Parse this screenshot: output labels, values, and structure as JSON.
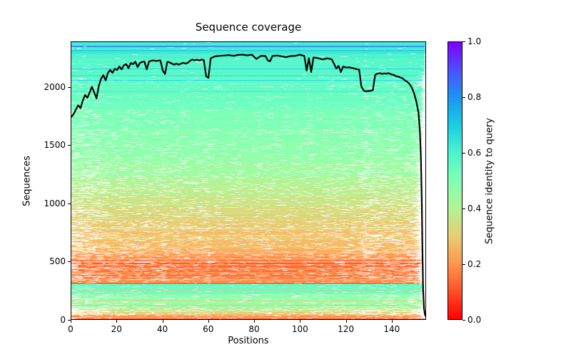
{
  "chart_data": {
    "type": "heatmap",
    "title": "Sequence coverage",
    "xlabel": "Positions",
    "ylabel": "Sequences",
    "x_range": [
      0,
      155
    ],
    "y_range": [
      0,
      2390
    ],
    "x_ticks": [
      0,
      20,
      40,
      60,
      80,
      100,
      120,
      140
    ],
    "y_ticks": [
      0,
      500,
      1000,
      1500,
      2000
    ],
    "grid": false,
    "background": "#ffffff",
    "colorbar": {
      "label": "Sequence identity to query",
      "range": [
        0.0,
        1.0
      ],
      "ticks": [
        "0.0",
        "0.2",
        "0.4",
        "0.6",
        "0.8",
        "1.0"
      ],
      "colormap": "rainbow_r",
      "stops": [
        {
          "v": 0.0,
          "c": "#ff0000"
        },
        {
          "v": 0.05,
          "c": "#ff2814"
        },
        {
          "v": 0.1,
          "c": "#ff4f28"
        },
        {
          "v": 0.15,
          "c": "#ff743b"
        },
        {
          "v": 0.2,
          "c": "#ff964f"
        },
        {
          "v": 0.3,
          "c": "#e6ce74"
        },
        {
          "v": 0.4,
          "c": "#b3f396"
        },
        {
          "v": 0.5,
          "c": "#80ffb4"
        },
        {
          "v": 0.6,
          "c": "#4df3ce"
        },
        {
          "v": 0.7,
          "c": "#1acee3"
        },
        {
          "v": 0.8,
          "c": "#1a96f3"
        },
        {
          "v": 0.9,
          "c": "#4d4ffc"
        },
        {
          "v": 1.0,
          "c": "#8000ff"
        }
      ]
    },
    "coverage_line": {
      "name": "coverage-per-position",
      "color": "#000000",
      "width": 2.2,
      "points": [
        [
          0,
          1745
        ],
        [
          1,
          1770
        ],
        [
          2,
          1810
        ],
        [
          3,
          1845
        ],
        [
          4,
          1820
        ],
        [
          5,
          1885
        ],
        [
          6,
          1935
        ],
        [
          7,
          1910
        ],
        [
          8,
          1955
        ],
        [
          9,
          2005
        ],
        [
          10,
          1955
        ],
        [
          11,
          1905
        ],
        [
          12,
          2010
        ],
        [
          13,
          2075
        ],
        [
          14,
          2105
        ],
        [
          15,
          2060
        ],
        [
          16,
          2125
        ],
        [
          17,
          2150
        ],
        [
          18,
          2125
        ],
        [
          19,
          2160
        ],
        [
          20,
          2150
        ],
        [
          21,
          2180
        ],
        [
          22,
          2155
        ],
        [
          23,
          2190
        ],
        [
          24,
          2200
        ],
        [
          25,
          2165
        ],
        [
          26,
          2210
        ],
        [
          27,
          2200
        ],
        [
          28,
          2222
        ],
        [
          29,
          2175
        ],
        [
          30,
          2210
        ],
        [
          31,
          2220
        ],
        [
          32,
          2222
        ],
        [
          33,
          2155
        ],
        [
          34,
          2222
        ],
        [
          35,
          2230
        ],
        [
          36,
          2232
        ],
        [
          37,
          2228
        ],
        [
          38,
          2230
        ],
        [
          39,
          2232
        ],
        [
          40,
          2145
        ],
        [
          41,
          2115
        ],
        [
          42,
          2220
        ],
        [
          43,
          2215
        ],
        [
          44,
          2205
        ],
        [
          45,
          2195
        ],
        [
          46,
          2205
        ],
        [
          47,
          2195
        ],
        [
          48,
          2205
        ],
        [
          49,
          2212
        ],
        [
          50,
          2205
        ],
        [
          51,
          2212
        ],
        [
          52,
          2230
        ],
        [
          53,
          2240
        ],
        [
          54,
          2232
        ],
        [
          55,
          2240
        ],
        [
          56,
          2232
        ],
        [
          57,
          2240
        ],
        [
          58,
          2235
        ],
        [
          59,
          2095
        ],
        [
          60,
          2082
        ],
        [
          61,
          2250
        ],
        [
          62,
          2260
        ],
        [
          63,
          2268
        ],
        [
          65,
          2272
        ],
        [
          67,
          2275
        ],
        [
          69,
          2278
        ],
        [
          71,
          2272
        ],
        [
          73,
          2280
        ],
        [
          75,
          2282
        ],
        [
          77,
          2276
        ],
        [
          79,
          2282
        ],
        [
          81,
          2245
        ],
        [
          83,
          2272
        ],
        [
          85,
          2270
        ],
        [
          86,
          2232
        ],
        [
          87,
          2225
        ],
        [
          88,
          2270
        ],
        [
          90,
          2275
        ],
        [
          92,
          2268
        ],
        [
          94,
          2260
        ],
        [
          96,
          2270
        ],
        [
          98,
          2272
        ],
        [
          100,
          2282
        ],
        [
          102,
          2270
        ],
        [
          103,
          2145
        ],
        [
          104,
          2252
        ],
        [
          105,
          2132
        ],
        [
          106,
          2258
        ],
        [
          108,
          2252
        ],
        [
          110,
          2240
        ],
        [
          112,
          2250
        ],
        [
          114,
          2242
        ],
        [
          116,
          2162
        ],
        [
          117,
          2185
        ],
        [
          118,
          2132
        ],
        [
          119,
          2180
        ],
        [
          120,
          2172
        ],
        [
          122,
          2172
        ],
        [
          124,
          2162
        ],
        [
          126,
          2152
        ],
        [
          127,
          2005
        ],
        [
          128,
          1972
        ],
        [
          129,
          1965
        ],
        [
          130,
          1968
        ],
        [
          131,
          1970
        ],
        [
          132,
          1975
        ],
        [
          133,
          2108
        ],
        [
          134,
          2118
        ],
        [
          135,
          2122
        ],
        [
          136,
          2116
        ],
        [
          137,
          2120
        ],
        [
          138,
          2118
        ],
        [
          139,
          2122
        ],
        [
          140,
          2112
        ],
        [
          141,
          2108
        ],
        [
          142,
          2098
        ],
        [
          143,
          2092
        ],
        [
          144,
          2085
        ],
        [
          145,
          2078
        ],
        [
          146,
          2060
        ],
        [
          147,
          2048
        ],
        [
          148,
          2030
        ],
        [
          149,
          2000
        ],
        [
          150,
          1952
        ],
        [
          151,
          1880
        ],
        [
          152,
          1780
        ],
        [
          152.6,
          1620
        ],
        [
          153,
          1420
        ],
        [
          153.4,
          1050
        ],
        [
          153.7,
          600
        ],
        [
          154,
          260
        ],
        [
          154.4,
          90
        ],
        [
          154.8,
          40
        ],
        [
          155,
          28
        ]
      ]
    },
    "msa_bands": [
      {
        "from": 2390,
        "to": 2290,
        "id_top": 0.63,
        "id_bot": 0.6,
        "jitter": 0.02,
        "gap": 0.05,
        "x_end": 155.0,
        "x_jit": 0.2
      },
      {
        "from": 2290,
        "to": 2100,
        "id_top": 0.6,
        "id_bot": 0.57,
        "jitter": 0.02,
        "gap": 0.12,
        "x_end": 155.0,
        "x_jit": 0.6
      },
      {
        "from": 2100,
        "to": 1800,
        "id_top": 0.57,
        "id_bot": 0.53,
        "jitter": 0.025,
        "gap": 0.3,
        "x_end": 154.9,
        "x_jit": 1.8
      },
      {
        "from": 1800,
        "to": 1640,
        "id_top": 0.52,
        "id_bot": 0.5,
        "jitter": 0.03,
        "gap": 0.55,
        "x_end": 154.9,
        "x_jit": 2.2
      },
      {
        "from": 1640,
        "to": 1350,
        "id_top": 0.49,
        "id_bot": 0.46,
        "jitter": 0.03,
        "gap": 0.8,
        "x_end": 154.5,
        "x_jit": 2.8
      },
      {
        "from": 1350,
        "to": 1150,
        "id_top": 0.45,
        "id_bot": 0.4,
        "jitter": 0.04,
        "gap": 0.95,
        "x_end": 154.0,
        "x_jit": 3.2
      },
      {
        "from": 1150,
        "to": 970,
        "id_top": 0.39,
        "id_bot": 0.34,
        "jitter": 0.04,
        "gap": 1.05,
        "x_end": 154.0,
        "x_jit": 3.2
      },
      {
        "from": 970,
        "to": 765,
        "id_top": 0.34,
        "id_bot": 0.3,
        "jitter": 0.05,
        "gap": 1.25,
        "x_end": 153.8,
        "x_jit": 3.5
      },
      {
        "from": 765,
        "to": 560,
        "id_top": 0.29,
        "id_bot": 0.24,
        "jitter": 0.05,
        "gap": 1.5,
        "x_end": 153.8,
        "x_jit": 3.5
      },
      {
        "from": 560,
        "to": 355,
        "id_top": 0.22,
        "id_bot": 0.16,
        "jitter": 0.06,
        "gap": 1.6,
        "x_end": 153.8,
        "x_jit": 3.5
      },
      {
        "from": 355,
        "to": 307,
        "id_top": 0.2,
        "id_bot": 0.15,
        "jitter": 0.08,
        "gap": 1.2,
        "x_end": 154.0,
        "x_jit": 2.5
      },
      {
        "from": 307,
        "to": 215,
        "id_top": 0.56,
        "id_bot": 0.54,
        "jitter": 0.015,
        "gap": 0.3,
        "x_end": 154.6,
        "x_jit": 0.8
      },
      {
        "from": 215,
        "to": 95,
        "id_top": 0.47,
        "id_bot": 0.44,
        "jitter": 0.04,
        "gap": 0.8,
        "x_end": 154.4,
        "x_jit": 1.5
      },
      {
        "from": 95,
        "to": 35,
        "id_top": 0.4,
        "id_bot": 0.28,
        "jitter": 0.1,
        "gap": 1.8,
        "x_end": 154.0,
        "x_jit": 3.0
      },
      {
        "from": 35,
        "to": 8,
        "id_top": 0.24,
        "id_bot": 0.2,
        "jitter": 0.06,
        "gap": 1.4,
        "x_end": 154.5,
        "x_jit": 1.5
      },
      {
        "from": 8,
        "to": 0,
        "id_top": 0.15,
        "id_bot": 0.12,
        "jitter": 0.02,
        "gap": 0.35,
        "x_end": 155.0,
        "x_jit": 0.3
      }
    ],
    "highlight_rows": [
      {
        "seq": 2352,
        "identity": 0.85,
        "half": 5
      },
      {
        "seq": 2315,
        "identity": 0.77,
        "half": 3
      },
      {
        "seq": 2297,
        "identity": 0.68,
        "half": 2.5
      },
      {
        "seq": 2160,
        "identity": 0.7,
        "half": 3
      },
      {
        "seq": 2100,
        "identity": 0.67,
        "half": 2.5
      },
      {
        "seq": 2060,
        "identity": 0.68,
        "half": 2.5
      },
      {
        "seq": 1960,
        "identity": 0.65,
        "half": 2.5
      },
      {
        "seq": 508,
        "identity": 0.1,
        "half": 3
      },
      {
        "seq": 480,
        "identity": 0.08,
        "half": 4
      },
      {
        "seq": 452,
        "identity": 0.1,
        "half": 3
      },
      {
        "seq": 310,
        "identity": 0.1,
        "half": 4
      },
      {
        "seq": 247,
        "identity": 0.28,
        "half": 3
      },
      {
        "seq": 162,
        "identity": 0.28,
        "half": 2.5
      },
      {
        "seq": 120,
        "identity": 0.27,
        "half": 2.5
      },
      {
        "seq": 25,
        "identity": 0.12,
        "half": 3
      }
    ]
  }
}
